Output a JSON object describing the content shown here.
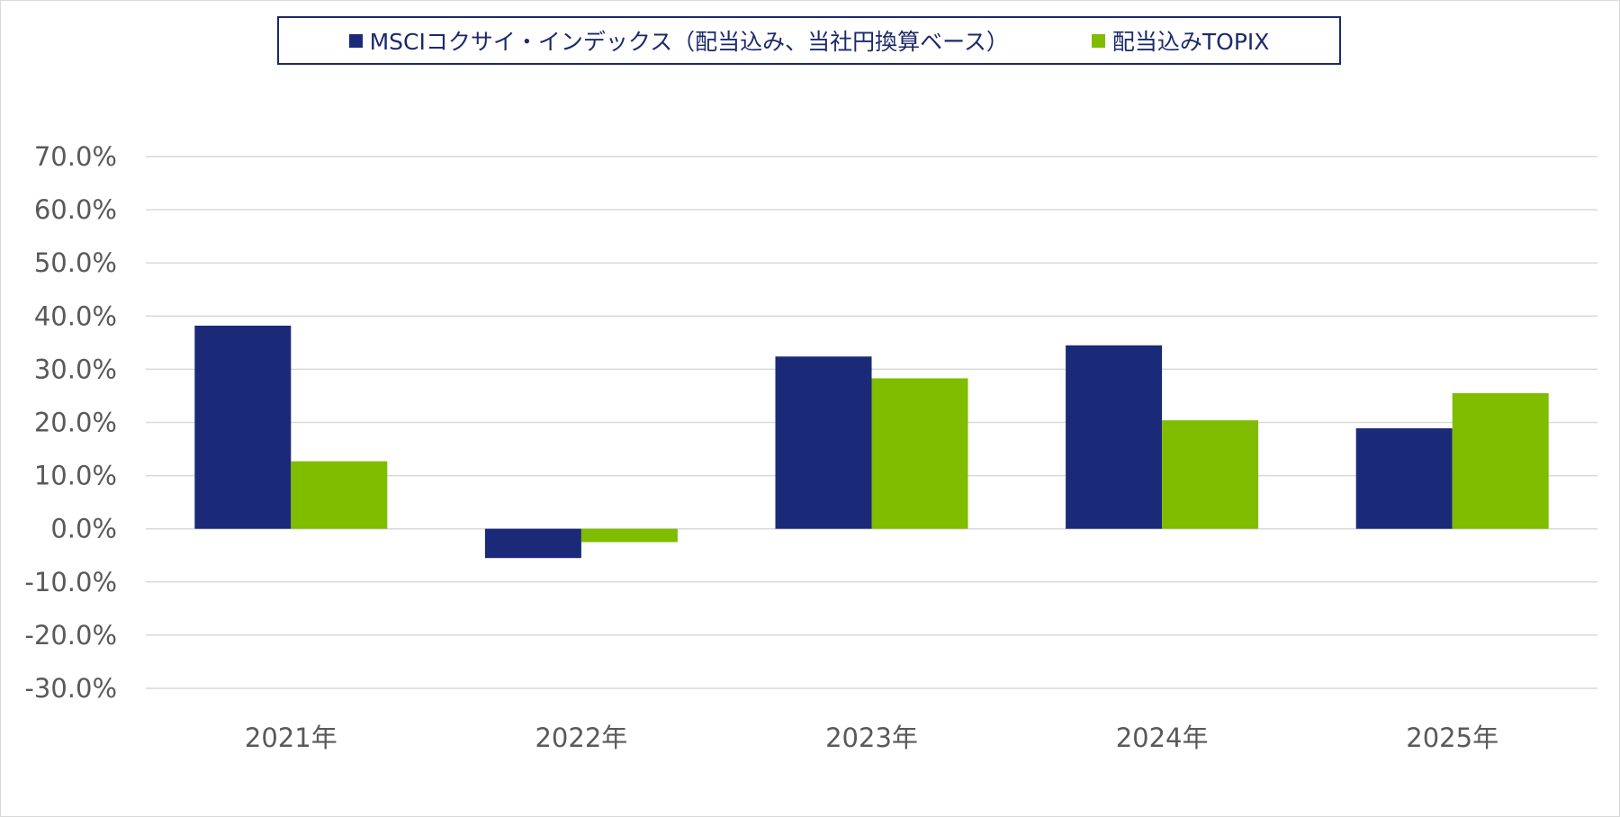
{
  "chart_data": {
    "type": "bar",
    "categories": [
      "2021年",
      "2022年",
      "2023年",
      "2024年",
      "2025年"
    ],
    "series": [
      {
        "name": "MSCIコクサイ・インデックス（配当込み、当社円換算ベース）",
        "values": [
          38.2,
          -5.5,
          32.4,
          34.5,
          18.9
        ],
        "color": "#1b2a78"
      },
      {
        "name": "配当込みTOPIX",
        "values": [
          12.7,
          -2.5,
          28.3,
          20.4,
          25.5
        ],
        "color": "#80bc00"
      }
    ],
    "ylim": [
      -30,
      70
    ],
    "yticks": [
      70,
      60,
      50,
      40,
      30,
      20,
      10,
      0,
      -10,
      -20,
      -30
    ],
    "ytick_labels": [
      "70.0%",
      "60.0%",
      "50.0%",
      "40.0%",
      "30.0%",
      "20.0%",
      "10.0%",
      "0.0%",
      "-10.0%",
      "-20.0%",
      "-30.0%"
    ],
    "grid": true,
    "legend_position": "top",
    "title": "",
    "xlabel": "",
    "ylabel": ""
  }
}
